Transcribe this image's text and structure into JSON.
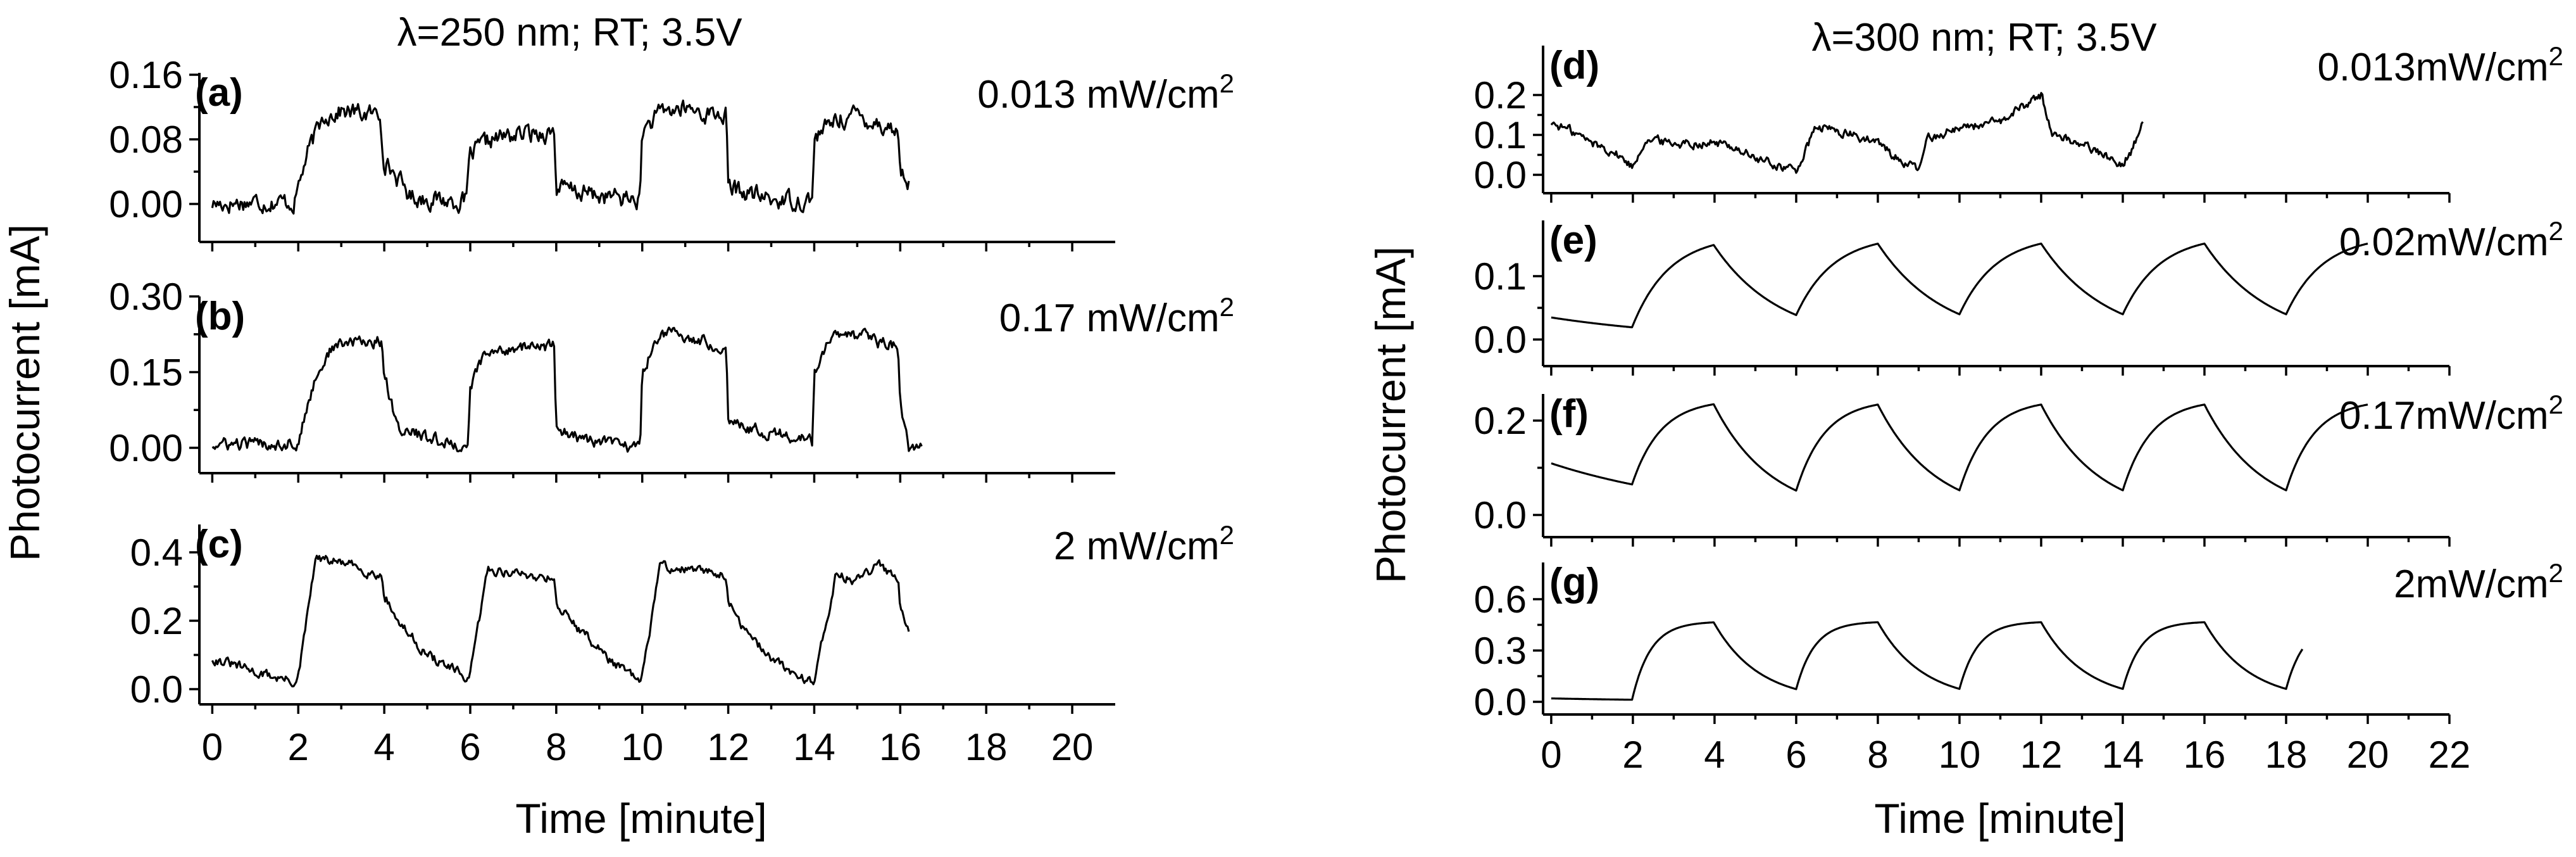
{
  "figure": {
    "y_axis_title": "Photocurrent [mA]",
    "x_axis_title": "Time [minute]",
    "text_color": "#000000",
    "panel_label_color": "#1515c8",
    "trace_color": "#000000"
  },
  "chart_data": [
    {
      "type": "line",
      "title": "λ=250 nm; RT; 3.5V",
      "xlabel": "Time [minute]",
      "ylabel": "Photocurrent [mA]",
      "xlim": [
        -0.3,
        21
      ],
      "xticks": [
        0,
        2,
        4,
        6,
        8,
        10,
        12,
        14,
        16,
        18,
        20
      ],
      "xtick_labels": [
        "0",
        "2",
        "4",
        "6",
        "8",
        "10",
        "12",
        "14",
        "16",
        "18",
        "20"
      ],
      "panels": [
        {
          "label": "(a)",
          "intensity_main": "0.013 mW/cm",
          "intensity_sup": "2",
          "ylim": [
            -0.015,
            0.165
          ],
          "yticks": [
            0.0,
            0.08,
            0.16
          ],
          "ytick_labels": [
            "0.00",
            "0.08",
            "0.16"
          ],
          "series": {
            "name": "0.013 mW/cm2",
            "shape": "square",
            "on_times": [
              2.2,
              6.0,
              10.0,
              14.0
            ],
            "off_times": [
              4.0,
              8.0,
              12.0,
              16.0
            ],
            "end": 16.2,
            "points": {
              "x": [
                0,
                1,
                1.9,
                2.2,
                2.6,
                3.0,
                3.5,
                3.9,
                4.0,
                4.6,
                5.2,
                5.9,
                6.0,
                6.5,
                7.0,
                7.5,
                7.95,
                8.0,
                9.0,
                9.95,
                10.0,
                10.5,
                11.0,
                11.5,
                11.95,
                12.0,
                13.0,
                13.95,
                14.0,
                14.5,
                15.0,
                15.5,
                15.95,
                16.0,
                16.2
              ],
              "y": [
                0.0,
                0.003,
                0.002,
                0.06,
                0.11,
                0.115,
                0.112,
                0.11,
                0.055,
                0.01,
                0.005,
                0.003,
                0.06,
                0.08,
                0.085,
                0.088,
                0.09,
                0.02,
                0.01,
                0.005,
                0.09,
                0.115,
                0.118,
                0.112,
                0.11,
                0.02,
                0.005,
                0.005,
                0.08,
                0.105,
                0.11,
                0.1,
                0.09,
                0.04,
                0.03
              ]
            },
            "noise": 0.012
          }
        },
        {
          "label": "(b)",
          "intensity_main": "0.17 mW/cm",
          "intensity_sup": "2",
          "ylim": [
            -0.03,
            0.31
          ],
          "yticks": [
            0.0,
            0.15,
            0.3
          ],
          "ytick_labels": [
            "0.00",
            "0.15",
            "0.30"
          ],
          "series": {
            "name": "0.17 mW/cm2",
            "shape": "square",
            "on_times": [
              2.0,
              6.0,
              10.0,
              14.0
            ],
            "off_times": [
              4.0,
              8.0,
              12.0,
              16.0
            ],
            "end": 16.5,
            "points": {
              "x": [
                0,
                1,
                2.0,
                2.4,
                2.8,
                3.3,
                3.95,
                4.0,
                4.3,
                5.0,
                5.95,
                6.0,
                6.3,
                7.0,
                7.5,
                7.95,
                8.0,
                8.5,
                9.0,
                9.95,
                10.0,
                10.4,
                11.0,
                11.5,
                11.95,
                12.0,
                12.5,
                13.0,
                13.6,
                13.95,
                14.0,
                14.4,
                15.0,
                15.5,
                15.95,
                16.0,
                16.2,
                16.5
              ],
              "y": [
                0.005,
                0.008,
                0.01,
                0.14,
                0.2,
                0.21,
                0.21,
                0.15,
                0.04,
                0.02,
                0.0,
                0.12,
                0.18,
                0.2,
                0.2,
                0.2,
                0.04,
                0.02,
                0.01,
                0.0,
                0.15,
                0.23,
                0.22,
                0.21,
                0.2,
                0.06,
                0.04,
                0.03,
                0.02,
                0.01,
                0.15,
                0.22,
                0.22,
                0.21,
                0.2,
                0.08,
                0.0,
                0.0
              ]
            },
            "noise": 0.013
          }
        },
        {
          "label": "(c)",
          "intensity_main": "2 mW/cm",
          "intensity_sup": "2",
          "ylim": [
            -0.05,
            0.45
          ],
          "yticks": [
            0.0,
            0.2,
            0.4
          ],
          "ytick_labels": [
            "0.0",
            "0.2",
            "0.4"
          ],
          "series": {
            "name": "2 mW/cm2",
            "shape": "jump-decay",
            "on_times": [
              2.0,
              6.0,
              10.0,
              14.0
            ],
            "off_times": [
              4.0,
              8.0,
              12.0,
              16.0
            ],
            "end": 16.2,
            "points": {
              "x": [
                0,
                1,
                1.95,
                2.0,
                2.4,
                3.0,
                3.5,
                3.95,
                4.0,
                4.3,
                5.0,
                5.95,
                6.0,
                6.4,
                7.0,
                7.5,
                7.95,
                8.0,
                8.5,
                9.3,
                9.95,
                10.0,
                10.4,
                11.0,
                11.5,
                11.95,
                12.0,
                12.5,
                13.3,
                13.95,
                14.0,
                14.5,
                15.0,
                15.5,
                15.95,
                16.0,
                16.2
              ],
              "y": [
                0.09,
                0.05,
                0.02,
                0.03,
                0.38,
                0.37,
                0.35,
                0.33,
                0.28,
                0.2,
                0.1,
                0.03,
                0.04,
                0.35,
                0.34,
                0.33,
                0.33,
                0.25,
                0.18,
                0.08,
                0.02,
                0.03,
                0.36,
                0.35,
                0.34,
                0.34,
                0.25,
                0.15,
                0.06,
                0.02,
                0.03,
                0.33,
                0.32,
                0.36,
                0.33,
                0.25,
                0.17
              ]
            },
            "noise": 0.015
          }
        }
      ]
    },
    {
      "type": "line",
      "title": "λ=300 nm; RT; 3.5V",
      "xlabel": "Time [minute]",
      "ylabel": "Photocurrent [mA]",
      "xlim": [
        -0.2,
        22
      ],
      "xticks": [
        0,
        2,
        4,
        6,
        8,
        10,
        12,
        14,
        16,
        18,
        20,
        22
      ],
      "xtick_labels": [
        "0",
        "2",
        "4",
        "6",
        "8",
        "10",
        "12",
        "14",
        "16",
        "18",
        "20",
        "22"
      ],
      "panels": [
        {
          "label": "(d)",
          "intensity_main": "0.013mW/cm",
          "intensity_sup": "2",
          "ylim": [
            -0.03,
            0.3
          ],
          "yticks": [
            0.0,
            0.1,
            0.2
          ],
          "ytick_labels": [
            "0.0",
            "0.1",
            "0.2"
          ],
          "series": {
            "name": "0.013mW/cm2",
            "shape": "noisy",
            "end": 14.5,
            "points": {
              "x": [
                0,
                0.5,
                1.0,
                1.5,
                2.0,
                2.3,
                3.0,
                4.0,
                4.5,
                5.0,
                6.0,
                6.5,
                7.0,
                8.0,
                8.5,
                9.0,
                9.2,
                10.0,
                11.0,
                11.5,
                12.0,
                12.3,
                13.0,
                13.5,
                14.0,
                14.2,
                14.5
              ],
              "y": [
                0.13,
                0.11,
                0.08,
                0.06,
                0.02,
                0.09,
                0.08,
                0.08,
                0.07,
                0.04,
                0.01,
                0.12,
                0.11,
                0.08,
                0.04,
                0.01,
                0.09,
                0.12,
                0.13,
                0.17,
                0.2,
                0.1,
                0.08,
                0.05,
                0.03,
                0.06,
                0.13
              ]
            },
            "noise": 0.012
          }
        },
        {
          "label": "(e)",
          "intensity_main": "0.02mW/cm",
          "intensity_sup": "2",
          "ylim": [
            -0.03,
            0.18
          ],
          "yticks": [
            0.0,
            0.1
          ],
          "ytick_labels": [
            "0.0",
            "0.1"
          ],
          "series": {
            "name": "0.02mW/cm2",
            "shape": "exp-rise-decay",
            "initial": 0.035,
            "high": 0.165,
            "low": -0.005,
            "tau_on": 0.9,
            "tau_off": 1.6,
            "on_times": [
              2,
              6,
              10,
              14,
              18
            ],
            "off_times": [
              4,
              8,
              12,
              16
            ],
            "end": 20.0
          }
        },
        {
          "label": "(f)",
          "intensity_main": "0.17mW/cm",
          "intensity_sup": "2",
          "ylim": [
            -0.04,
            0.27
          ],
          "yticks": [
            0.0,
            0.2
          ],
          "ytick_labels": [
            "0.0",
            "0.2"
          ],
          "series": {
            "name": "0.17mW/cm2",
            "shape": "exp-rise-decay",
            "initial": 0.11,
            "high": 0.245,
            "low": -0.005,
            "tau_on": 0.7,
            "tau_off": 1.4,
            "on_times": [
              2,
              6,
              10,
              14,
              18
            ],
            "off_times": [
              4,
              8,
              12,
              16
            ],
            "end": 20.0
          }
        },
        {
          "label": "(g)",
          "intensity_main": "2mW/cm",
          "intensity_sup": "2",
          "ylim": [
            -0.06,
            0.62
          ],
          "yticks": [
            0.0,
            0.3,
            0.6
          ],
          "ytick_labels": [
            "0.0",
            "0.3",
            "0.6"
          ],
          "series": {
            "name": "2mW/cm2",
            "shape": "exp-rise-decay",
            "initial": 0.02,
            "high": 0.47,
            "low": 0.0,
            "tau_on": 0.45,
            "tau_off": 1.1,
            "on_times": [
              2,
              6,
              10,
              14,
              18
            ],
            "off_times": [
              4,
              8,
              12,
              16
            ],
            "end": 18.4
          }
        }
      ]
    }
  ]
}
